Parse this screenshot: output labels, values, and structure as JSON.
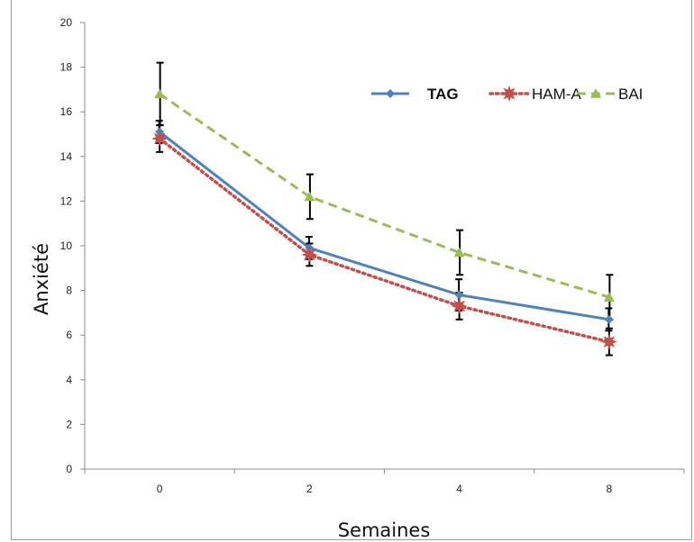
{
  "chart_data": {
    "type": "line",
    "categories": [
      "0",
      "2",
      "4",
      "8"
    ],
    "xlabel": "Semaines",
    "ylabel": "Anxiété",
    "ylim": [
      0,
      20
    ],
    "yticks": [
      "0",
      "2",
      "4",
      "6",
      "8",
      "10",
      "12",
      "14",
      "16",
      "18",
      "20"
    ],
    "grid": false,
    "legend_position": "top-right",
    "series": [
      {
        "name": "TAG",
        "values": [
          15.1,
          9.9,
          7.8,
          6.7
        ],
        "error": [
          0.5,
          0.5,
          0.7,
          0.5
        ],
        "color": "#4f81bd",
        "line": "solid",
        "marker": "diamond",
        "bold_label": true
      },
      {
        "name": "HAM-A",
        "values": [
          14.8,
          9.6,
          7.3,
          5.7
        ],
        "error": [
          0.6,
          0.5,
          0.6,
          0.6
        ],
        "color": "#c0504d",
        "line": "dotted",
        "marker": "star",
        "bold_label": false
      },
      {
        "name": "BAI",
        "values": [
          16.8,
          12.2,
          9.7,
          7.7
        ],
        "error": [
          1.4,
          1.0,
          1.0,
          1.0
        ],
        "color": "#9bbb59",
        "line": "dashed",
        "marker": "triangle",
        "bold_label": false
      }
    ]
  }
}
